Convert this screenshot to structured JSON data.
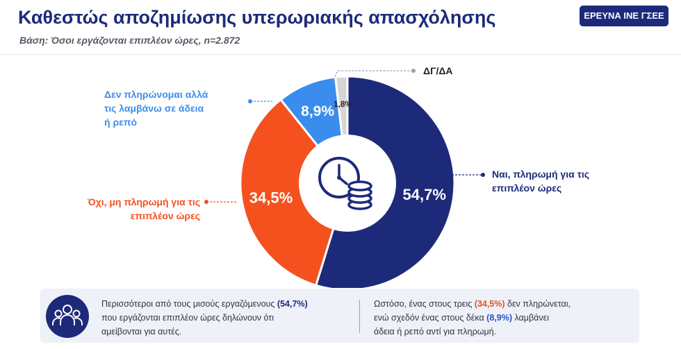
{
  "header": {
    "title": "Καθεστώς αποζημίωσης υπερωριακής απασχόλησης",
    "subtitle": "Βάση: Όσοι εργάζονται επιπλέον ώρες, n=2.872",
    "badge": "ΕΡΕΥΝΑ ΙΝΕ ΓΣΕΕ"
  },
  "chart_data": {
    "type": "pie",
    "title": "Καθεστώς αποζημίωσης υπερωριακής απασχόλησης",
    "slices": [
      {
        "label": "Ναι, πληρωμή για τις επιπλέον ώρες",
        "value": 54.7,
        "display": "54,7%",
        "color": "#1d2a7a"
      },
      {
        "label": "Όχι, μη πληρωμή για τις επιπλέον ώρες",
        "value": 34.5,
        "display": "34,5%",
        "color": "#f4511e"
      },
      {
        "label": "Δεν πληρώνομαι αλλά τις λαμβάνω σε άδεια ή ρεπό",
        "value": 8.9,
        "display": "8,9%",
        "color": "#3b8ded"
      },
      {
        "label": "ΔΓ/ΔΑ",
        "value": 1.8,
        "display": "1,8%",
        "color": "#d6d6d6"
      }
    ],
    "center_icon": "clock-coins-icon"
  },
  "callouts": {
    "yes_line1": "Ναι, πληρωμή για τις",
    "yes_line2": "επιπλέον ώρες",
    "no_line1": "Όχι, μη πληρωμή για τις",
    "no_line2": "επιπλέον ώρες",
    "leave_line1": "Δεν πληρώνομαι αλλά",
    "leave_line2": "τις λαμβάνω σε άδεια",
    "leave_line3": "ή ρεπό",
    "dk": "ΔΓ/ΔΑ"
  },
  "summary": {
    "icon": "group-people-icon",
    "left_a": "Περισσότεροι από τους μισούς εργαζόμενους ",
    "left_b": "(54,7%)",
    "left_c": "που εργάζονται επιπλέον ώρες δηλώνουν ότι",
    "left_d": "αμείβονται για αυτές.",
    "right_a": "Ωστόσο, ένας στους τρεις ",
    "right_b": "(34,5%)",
    "right_c": " δεν πληρώνεται,",
    "right_d": "ενώ σχεδόν ένας στους δέκα ",
    "right_e": "(8,9%)",
    "right_f": " λαμβάνει",
    "right_g": "άδεια ή ρεπό αντί για πληρωμή."
  }
}
